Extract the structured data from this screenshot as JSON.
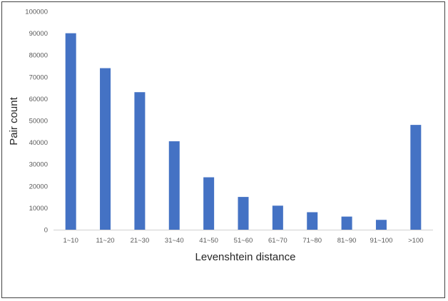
{
  "chart_data": {
    "type": "bar",
    "title": "",
    "xlabel": "Levenshtein distance",
    "ylabel": "Pair count",
    "categories": [
      "1~10",
      "11~20",
      "21~30",
      "31~40",
      "41~50",
      "51~60",
      "61~70",
      "71~80",
      "81~90",
      "91~100",
      ">100"
    ],
    "values": [
      90000,
      74000,
      63000,
      40500,
      24000,
      15000,
      11000,
      8000,
      6000,
      4500,
      48000
    ],
    "ylim": [
      0,
      100000
    ],
    "yticks": [
      "0",
      "10000",
      "20000",
      "30000",
      "40000",
      "50000",
      "60000",
      "70000",
      "80000",
      "90000",
      "100000"
    ],
    "grid": false,
    "legend": "none",
    "bar_color": "#4472C4"
  }
}
